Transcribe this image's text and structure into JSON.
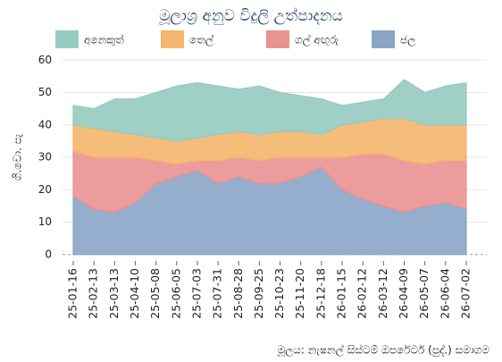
{
  "chart_data": {
    "type": "stacked_area",
    "title": "මූලාශ්‍ර අනුව විදුලි උත්පාදනය",
    "ylabel": "ගි.වො. පැ",
    "source": "මූලය: නැෂනල් සිස්ටම් ඔපරේටර් (පුද්.) සමාගම",
    "categories": [
      "25-01-16",
      "25-02-13",
      "25-03-13",
      "25-04-10",
      "25-05-08",
      "25-06-05",
      "25-07-03",
      "25-07-31",
      "25-08-28",
      "25-09-25",
      "25-10-23",
      "25-11-20",
      "25-12-18",
      "26-01-15",
      "26-02-12",
      "26-03-12",
      "26-04-09",
      "26-05-07",
      "26-06-04",
      "26-07-02"
    ],
    "series": [
      {
        "name": "ජල",
        "color": "#8aa5c8",
        "values": [
          18,
          14,
          13,
          16,
          22,
          24,
          26,
          22,
          24,
          22,
          22,
          24,
          27,
          20,
          17,
          15,
          13,
          15,
          16,
          14
        ]
      },
      {
        "name": "ගල් අඟුරු",
        "color": "#ea9191",
        "values": [
          14,
          16,
          17,
          14,
          7,
          4,
          3,
          7,
          6,
          7,
          8,
          6,
          3,
          10,
          14,
          16,
          16,
          13,
          13,
          15
        ]
      },
      {
        "name": "තෙල්",
        "color": "#f4b56c",
        "values": [
          8,
          9,
          8,
          7,
          7,
          7,
          7,
          8,
          8,
          8,
          8,
          8,
          7,
          10,
          10,
          11,
          13,
          12,
          11,
          11
        ]
      },
      {
        "name": "අනෙකුත්",
        "color": "#96cbbf",
        "values": [
          6,
          6,
          10,
          11,
          14,
          17,
          17,
          15,
          13,
          15,
          12,
          11,
          11,
          6,
          6,
          6,
          12,
          10,
          12,
          13
        ]
      }
    ],
    "ylim": [
      -2,
      62
    ],
    "yticks": [
      0,
      10,
      20,
      30,
      40,
      50,
      60
    ],
    "grid": true
  }
}
